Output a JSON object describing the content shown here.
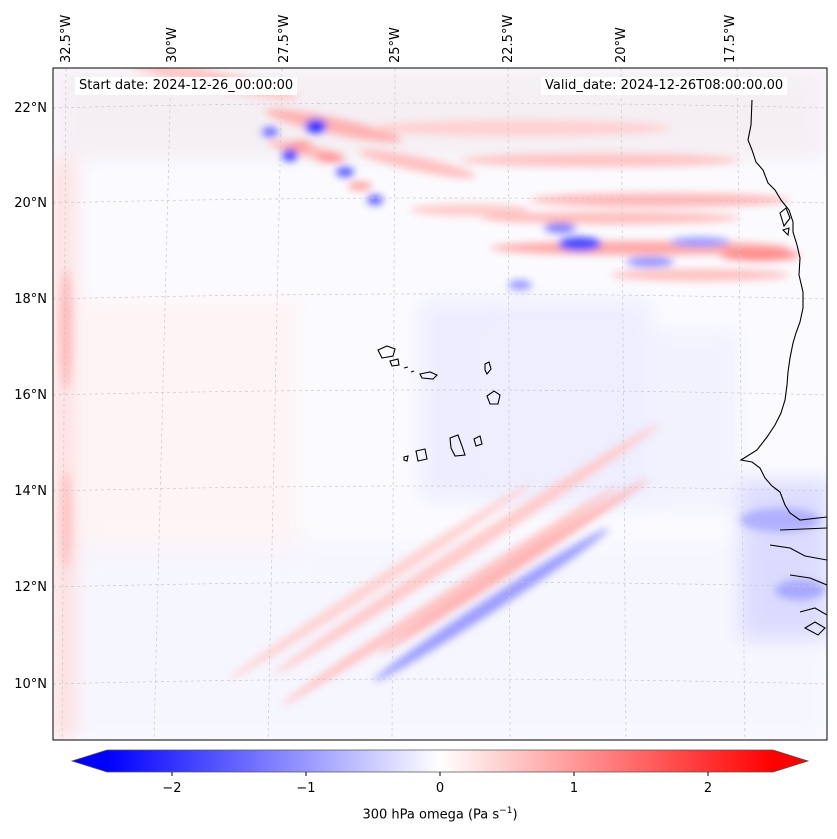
{
  "header": {
    "start_date": "Start date: 2024-12-26_00:00:00",
    "valid_date": "Valid_date: 2024-12-26T08:00:00.00"
  },
  "map": {
    "lon_labels": [
      "32.5°W",
      "30°W",
      "27.5°W",
      "25°W",
      "22.5°W",
      "20°W",
      "17.5°W"
    ],
    "lat_labels": [
      "22°N",
      "20°N",
      "18°N",
      "16°N",
      "14°N",
      "12°N",
      "10°N"
    ],
    "field": "300 hPa omega",
    "gridlines": true
  },
  "colorbar": {
    "label": "300 hPa omega (Pa s",
    "label_sup": "−1",
    "label_tail": ")",
    "ticks": [
      "−2",
      "−1",
      "0",
      "1",
      "2"
    ],
    "range": [
      -2.6,
      2.6
    ],
    "cmap": "bwr",
    "colors": {
      "negative": "#0000ff",
      "zero": "#ffffff",
      "positive": "#ff0000"
    }
  }
}
